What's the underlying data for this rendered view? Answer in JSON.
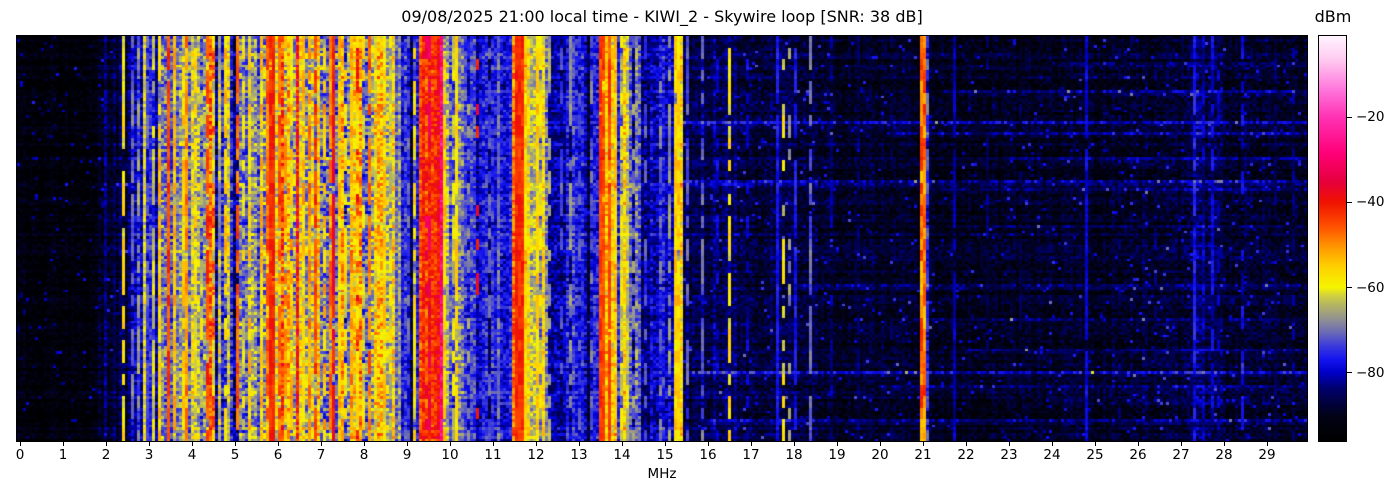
{
  "figure": {
    "background": "#ffffff",
    "text_color": "#000000"
  },
  "chart_data": {
    "type": "heatmap",
    "title": "09/08/2025 21:00 local time - KIWI_2 - Skywire loop [SNR: 38 dB]",
    "xlabel": "MHz",
    "x_range": [
      -0.07,
      29.93
    ],
    "x_ticks": [
      0,
      1,
      2,
      3,
      4,
      5,
      6,
      7,
      8,
      9,
      10,
      11,
      12,
      13,
      14,
      15,
      16,
      17,
      18,
      19,
      20,
      21,
      22,
      23,
      24,
      25,
      26,
      27,
      28,
      29
    ],
    "grid": false,
    "colorbar": {
      "label": "dBm",
      "vmin": -96,
      "vmax": -1,
      "ticks": [
        {
          "value": -20,
          "label": "−20"
        },
        {
          "value": -40,
          "label": "−40"
        },
        {
          "value": -60,
          "label": "−60"
        },
        {
          "value": -80,
          "label": "−80"
        }
      ]
    },
    "colormap": [
      [
        0.0,
        "#000000"
      ],
      [
        0.06,
        "#020216"
      ],
      [
        0.13,
        "#00006e"
      ],
      [
        0.168,
        "#0000c8"
      ],
      [
        0.2,
        "#1414f0"
      ],
      [
        0.235,
        "#3c3cdc"
      ],
      [
        0.27,
        "#6e6eb4"
      ],
      [
        0.305,
        "#96968c"
      ],
      [
        0.335,
        "#b4b464"
      ],
      [
        0.36,
        "#d2d23c"
      ],
      [
        0.379,
        "#f5f500"
      ],
      [
        0.43,
        "#ffd200"
      ],
      [
        0.48,
        "#ff9600"
      ],
      [
        0.53,
        "#ff5000"
      ],
      [
        0.589,
        "#f01400"
      ],
      [
        0.64,
        "#e6003c"
      ],
      [
        0.71,
        "#ff0078"
      ],
      [
        0.8,
        "#ff32b4"
      ],
      [
        0.87,
        "#ff78dc"
      ],
      [
        0.94,
        "#ffc8f0"
      ],
      [
        1.0,
        "#fff4fe"
      ]
    ],
    "resolution": {
      "rows": 144,
      "cols": 430
    },
    "noise_seed": 1337,
    "bands_format": [
      "f_start",
      "f_end",
      "base_dBm",
      "col_var",
      "cell_var",
      "hot_p",
      "cold_p"
    ],
    "bands": [
      [
        -0.07,
        1.8,
        -93,
        1.5,
        3.0,
        0.0,
        0.0
      ],
      [
        1.8,
        2.55,
        -87,
        4.0,
        4.0,
        0.05,
        0.0
      ],
      [
        2.55,
        3.2,
        -77,
        6.0,
        5.0,
        0.08,
        0.1
      ],
      [
        3.2,
        4.5,
        -64,
        9.0,
        7.0,
        0.12,
        0.15
      ],
      [
        4.5,
        5.5,
        -69,
        9.0,
        7.0,
        0.1,
        0.2
      ],
      [
        5.5,
        8.75,
        -62,
        10.0,
        8.0,
        0.12,
        0.18
      ],
      [
        8.75,
        9.25,
        -75,
        5.0,
        5.0,
        0.05,
        0.1
      ],
      [
        9.25,
        9.85,
        -43,
        4.0,
        5.0,
        0.1,
        0.05
      ],
      [
        9.85,
        10.3,
        -67,
        7.0,
        6.0,
        0.08,
        0.15
      ],
      [
        10.3,
        11.45,
        -75,
        4.0,
        5.0,
        0.03,
        0.1
      ],
      [
        11.45,
        11.8,
        -52,
        7.0,
        6.0,
        0.15,
        0.05
      ],
      [
        11.8,
        12.3,
        -65,
        7.0,
        6.0,
        0.08,
        0.12
      ],
      [
        12.3,
        13.45,
        -78,
        5.0,
        5.0,
        0.03,
        0.1
      ],
      [
        13.45,
        13.9,
        -52,
        7.0,
        7.0,
        0.15,
        0.05
      ],
      [
        13.9,
        14.45,
        -69,
        7.0,
        6.0,
        0.05,
        0.15
      ],
      [
        14.45,
        15.2,
        -80,
        4.0,
        5.0,
        0.02,
        0.1
      ],
      [
        15.2,
        15.45,
        -63,
        6.0,
        6.0,
        0.08,
        0.1
      ],
      [
        15.45,
        16.65,
        -85,
        3.0,
        4.0,
        0.01,
        0.0
      ],
      [
        16.65,
        18.55,
        -87,
        2.0,
        4.0,
        0.01,
        0.0
      ],
      [
        18.55,
        20.9,
        -89,
        1.5,
        3.5,
        0.0,
        0.0
      ],
      [
        20.9,
        21.15,
        -81,
        4.0,
        5.0,
        0.0,
        0.0
      ],
      [
        21.15,
        25.4,
        -90,
        1.5,
        3.5,
        0.0,
        0.0
      ],
      [
        25.4,
        27.1,
        -89,
        1.5,
        4.0,
        0.0,
        0.0
      ],
      [
        27.1,
        28.0,
        -86,
        3.0,
        4.5,
        0.02,
        0.0
      ],
      [
        28.0,
        29.93,
        -89,
        1.5,
        4.0,
        0.0,
        0.0
      ]
    ],
    "carriers_format": [
      "freq_MHz",
      "level_dBm",
      "duty",
      "width_bins",
      "jitter_dB"
    ],
    "carriers": [
      [
        2.44,
        -58,
        0.85,
        1,
        4
      ],
      [
        2.62,
        -70,
        0.6,
        1,
        3
      ],
      [
        2.78,
        -67,
        0.5,
        1,
        3
      ],
      [
        2.95,
        -72,
        0.7,
        1,
        3
      ],
      [
        3.1,
        -62,
        0.7,
        1,
        4
      ],
      [
        3.25,
        -55,
        0.8,
        1,
        5
      ],
      [
        3.47,
        -45,
        0.95,
        1,
        4
      ],
      [
        3.62,
        -54,
        0.8,
        1,
        5
      ],
      [
        3.78,
        -57,
        0.7,
        1,
        5
      ],
      [
        3.9,
        -50,
        0.9,
        1,
        5
      ],
      [
        4.07,
        -58,
        0.7,
        1,
        5
      ],
      [
        4.2,
        -62,
        0.6,
        1,
        4
      ],
      [
        4.35,
        -44,
        0.9,
        1,
        4
      ],
      [
        4.5,
        -60,
        0.7,
        1,
        5
      ],
      [
        4.65,
        -68,
        0.6,
        1,
        4
      ],
      [
        4.8,
        -56,
        0.7,
        1,
        5
      ],
      [
        5.06,
        -46,
        0.85,
        1,
        4
      ],
      [
        5.2,
        -60,
        0.6,
        1,
        5
      ],
      [
        5.35,
        -56,
        0.7,
        1,
        5
      ],
      [
        5.62,
        -55,
        0.7,
        1,
        5
      ],
      [
        5.75,
        -48,
        0.8,
        1,
        5
      ],
      [
        5.9,
        -42,
        0.95,
        2,
        3
      ],
      [
        6.05,
        -46,
        0.8,
        1,
        4
      ],
      [
        6.17,
        -52,
        0.7,
        1,
        5
      ],
      [
        6.3,
        -56,
        0.7,
        1,
        6
      ],
      [
        6.6,
        -55,
        0.7,
        1,
        5
      ],
      [
        6.75,
        -50,
        0.8,
        1,
        5
      ],
      [
        6.88,
        -45,
        0.85,
        1,
        4
      ],
      [
        7.05,
        -54,
        0.7,
        1,
        5
      ],
      [
        7.2,
        -49,
        0.8,
        1,
        5
      ],
      [
        7.3,
        -39,
        0.9,
        1,
        5
      ],
      [
        7.45,
        -54,
        0.7,
        1,
        5
      ],
      [
        7.6,
        -58,
        0.6,
        1,
        5
      ],
      [
        7.7,
        -51,
        0.8,
        1,
        5
      ],
      [
        7.85,
        -56,
        0.7,
        1,
        5
      ],
      [
        8.0,
        -59,
        0.6,
        1,
        5
      ],
      [
        8.1,
        -48,
        0.8,
        1,
        5
      ],
      [
        8.3,
        -60,
        0.6,
        1,
        5
      ],
      [
        8.45,
        -57,
        0.7,
        1,
        5
      ],
      [
        8.6,
        -61,
        0.6,
        1,
        5
      ],
      [
        9.0,
        -73,
        0.6,
        1,
        4
      ],
      [
        9.2,
        -58,
        0.8,
        1,
        4
      ],
      [
        9.55,
        -33,
        0.3,
        2,
        4
      ],
      [
        9.9,
        -55,
        0.8,
        1,
        4
      ],
      [
        10.05,
        -62,
        0.6,
        1,
        4
      ],
      [
        10.16,
        -57,
        0.8,
        1,
        4
      ],
      [
        10.4,
        -68,
        0.4,
        1,
        4
      ],
      [
        10.65,
        -38,
        0.12,
        1,
        5
      ],
      [
        10.9,
        -72,
        0.5,
        1,
        3
      ],
      [
        11.1,
        -70,
        0.4,
        1,
        3
      ],
      [
        11.6,
        -42,
        1,
        3,
        3
      ],
      [
        11.76,
        -56,
        0.9,
        1,
        4
      ],
      [
        12.0,
        -56,
        0.85,
        1,
        4
      ],
      [
        12.12,
        -60,
        0.7,
        1,
        4
      ],
      [
        12.3,
        -66,
        0.5,
        1,
        3
      ],
      [
        12.6,
        -72,
        0.5,
        1,
        3
      ],
      [
        12.82,
        -68,
        0.55,
        1,
        3
      ],
      [
        13.0,
        -73,
        0.5,
        1,
        3
      ],
      [
        13.28,
        -70,
        0.5,
        1,
        3
      ],
      [
        13.6,
        -44,
        0.95,
        2,
        3
      ],
      [
        13.73,
        -45,
        0.9,
        1,
        4
      ],
      [
        13.82,
        -55,
        0.8,
        1,
        4
      ],
      [
        13.97,
        -62,
        0.7,
        1,
        4
      ],
      [
        14.12,
        -64,
        0.6,
        1,
        4
      ],
      [
        14.3,
        -68,
        0.5,
        1,
        4
      ],
      [
        14.55,
        -73,
        0.5,
        1,
        3
      ],
      [
        14.9,
        -70,
        0.55,
        1,
        3
      ],
      [
        15.1,
        -67,
        0.5,
        1,
        4
      ],
      [
        15.3,
        -56,
        0.95,
        2,
        4
      ],
      [
        15.52,
        -72,
        0.7,
        1,
        3
      ],
      [
        15.9,
        -71,
        0.6,
        1,
        3
      ],
      [
        16.2,
        -80,
        0.5,
        1,
        3
      ],
      [
        16.5,
        -58,
        0.65,
        1,
        4
      ],
      [
        16.95,
        -80,
        0.5,
        1,
        3
      ],
      [
        17.6,
        -77,
        0.95,
        1,
        2
      ],
      [
        17.78,
        -60,
        0.3,
        1,
        5
      ],
      [
        17.92,
        -68,
        0.35,
        1,
        4
      ],
      [
        18.02,
        -77,
        0.7,
        1,
        3
      ],
      [
        18.37,
        -71,
        0.85,
        1,
        3
      ],
      [
        18.9,
        -83,
        0.5,
        1,
        3
      ],
      [
        19.5,
        -85,
        0.4,
        1,
        3
      ],
      [
        20.3,
        -85,
        0.4,
        1,
        3
      ],
      [
        21.0,
        -48,
        1,
        2,
        7
      ],
      [
        21.08,
        -72,
        0.6,
        1,
        4
      ],
      [
        21.7,
        -81,
        0.9,
        1,
        2
      ],
      [
        22.5,
        -85,
        0.5,
        1,
        3
      ],
      [
        23.3,
        -86,
        0.4,
        1,
        3
      ],
      [
        24.8,
        -79,
        0.95,
        1,
        2
      ],
      [
        25.6,
        -85,
        0.5,
        1,
        3
      ],
      [
        26.4,
        -85,
        0.4,
        1,
        3
      ],
      [
        27.3,
        -77,
        0.85,
        1,
        3
      ],
      [
        27.55,
        -81,
        0.7,
        1,
        3
      ],
      [
        27.7,
        -79,
        0.75,
        1,
        3
      ],
      [
        27.88,
        -82,
        0.6,
        1,
        3
      ],
      [
        28.4,
        -78,
        0.5,
        1,
        4
      ],
      [
        29.2,
        -85,
        0.5,
        1,
        3
      ],
      [
        29.6,
        -84,
        0.5,
        1,
        3
      ]
    ],
    "streaks_format": [
      "y_fraction",
      "f_start",
      "f_end",
      "boost_dB"
    ],
    "streaks": [
      [
        0.06,
        24.0,
        29.93,
        5
      ],
      [
        0.135,
        21.5,
        29.93,
        6
      ],
      [
        0.21,
        15.4,
        29.93,
        9
      ],
      [
        0.24,
        20.3,
        29.93,
        7
      ],
      [
        0.3,
        23.0,
        29.93,
        4
      ],
      [
        0.356,
        15.3,
        29.93,
        8
      ],
      [
        0.375,
        20.9,
        29.93,
        6
      ],
      [
        0.47,
        22.0,
        29.93,
        4
      ],
      [
        0.545,
        17.0,
        29.93,
        5
      ],
      [
        0.612,
        18.0,
        29.93,
        7
      ],
      [
        0.7,
        20.5,
        29.93,
        6
      ],
      [
        0.776,
        22.0,
        29.93,
        5
      ],
      [
        0.835,
        15.5,
        29.93,
        9
      ],
      [
        0.87,
        20.0,
        29.93,
        7
      ],
      [
        0.905,
        24.0,
        29.93,
        5
      ],
      [
        0.953,
        16.0,
        29.93,
        8
      ]
    ]
  }
}
